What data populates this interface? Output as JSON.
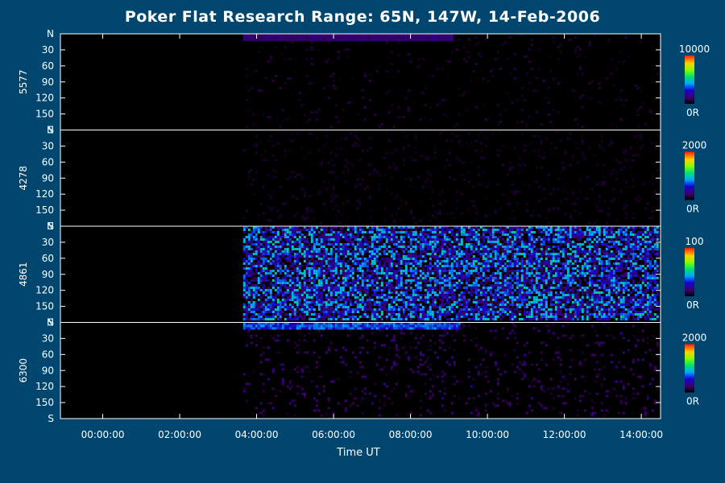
{
  "title": "Poker Flat Research Range: 65N, 147W, 14-Feb-2006",
  "colors": {
    "background": "#00466f",
    "axis": "#ffffff",
    "night": "#000000"
  },
  "chart_data": {
    "type": "heatmap",
    "title": "Poker Flat Research Range: 65N, 147W, 14-Feb-2006",
    "xlabel": "Time UT",
    "x_ticks": [
      "00:00:00",
      "02:00:00",
      "04:00:00",
      "06:00:00",
      "08:00:00",
      "10:00:00",
      "12:00:00",
      "14:00:00"
    ],
    "x_tick_hours": [
      0,
      2,
      4,
      6,
      8,
      10,
      12,
      14
    ],
    "xlim_hours": [
      -1.1,
      14.5
    ],
    "data_start_hour": 3.65,
    "y_ticks": [
      "N",
      "30",
      "60",
      "90",
      "120",
      "150",
      "S"
    ],
    "ylim": [
      0,
      180
    ],
    "panels": [
      {
        "name": "5577",
        "colorbar_max": "10000",
        "colorbar_min": "0R",
        "intensity": 0.05,
        "noise": 0.05,
        "band": {
          "y": 6,
          "end_hour": 9.1,
          "strength": 0.15
        }
      },
      {
        "name": "4278",
        "colorbar_max": "2000",
        "colorbar_min": "0R",
        "intensity": 0.04,
        "noise": 0.1,
        "band": null
      },
      {
        "name": "4861",
        "colorbar_max": "100",
        "colorbar_min": "0R",
        "intensity": 0.3,
        "noise": 0.75,
        "band": null
      },
      {
        "name": "6300",
        "colorbar_max": "2000",
        "colorbar_min": "0R",
        "intensity": 0.1,
        "noise": 0.1,
        "band": {
          "y": 5,
          "end_hour": 9.3,
          "strength": 0.35
        }
      }
    ]
  }
}
